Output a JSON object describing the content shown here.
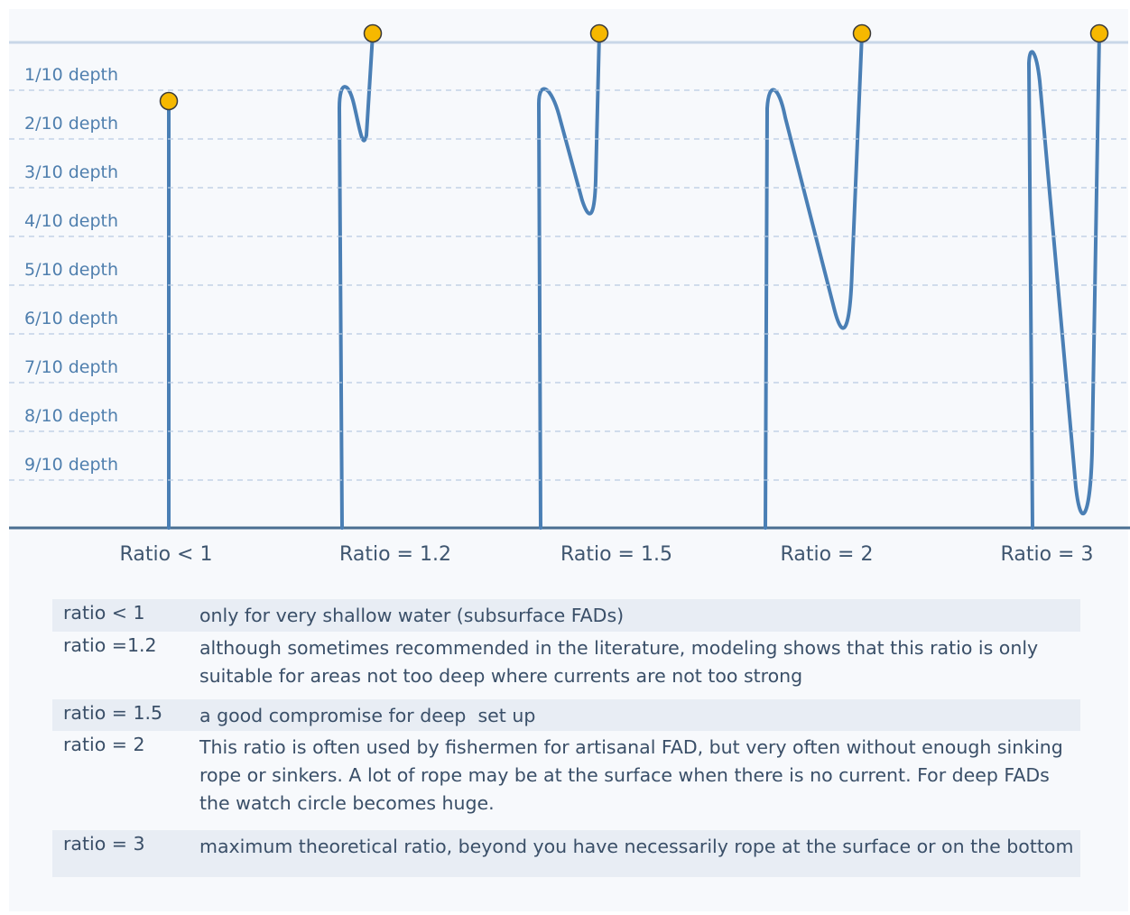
{
  "depth_labels": [
    "1/10 depth",
    "2/10 depth",
    "3/10 depth",
    "4/10 depth",
    "5/10 depth",
    "6/10 depth",
    "7/10 depth",
    "8/10 depth",
    "9/10 depth"
  ],
  "ratio_labels": [
    "Ratio < 1",
    "Ratio = 1.2",
    "Ratio = 1.5",
    "Ratio = 2",
    "Ratio = 3"
  ],
  "table": {
    "rows": [
      [
        "ratio < 1",
        [
          "only for very shallow water (subsurface FADs)"
        ]
      ],
      [
        "ratio =1.2",
        [
          "although sometimes recommended in the literature, modeling shows that this ratio is only",
          "suitable for areas not too deep where currents are not too strong"
        ]
      ],
      [
        "ratio = 1.5",
        [
          "a good compromise for deep  set up"
        ]
      ],
      [
        "ratio = 2",
        [
          "This ratio is often used by fishermen for artisanal FAD, but very often without enough sinking",
          "rope or sinkers. A lot of rope may be at the surface when there is no current. For deep FADs",
          "the watch circle becomes huge."
        ]
      ],
      [
        "ratio = 3",
        [
          "maximum theoretical ratio, beyond you have necessarily rope at the surface or on the bottom"
        ]
      ]
    ]
  }
}
